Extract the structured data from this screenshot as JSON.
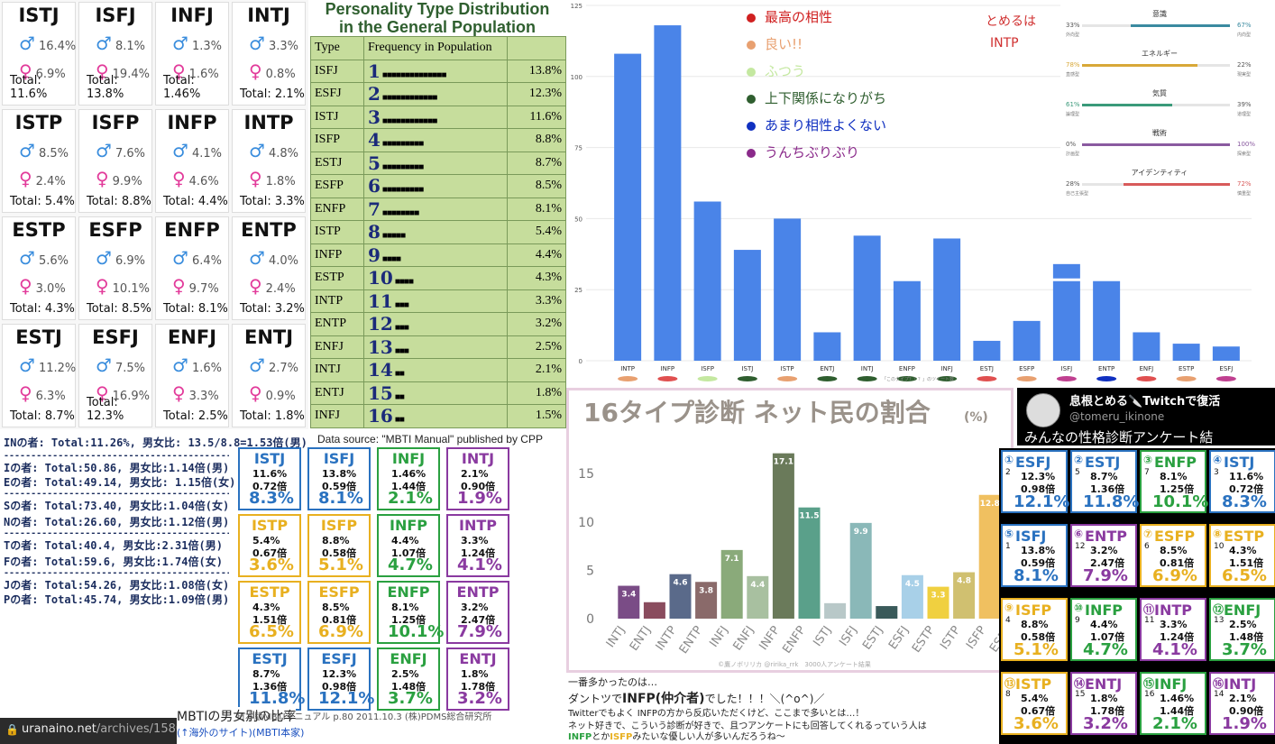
{
  "gender_grid": [
    {
      "type": "ISTJ",
      "male": "16.4%",
      "female": "6.9%",
      "total": "Total: 11.6%"
    },
    {
      "type": "ISFJ",
      "male": "8.1%",
      "female": "19.4%",
      "total": "Total: 13.8%"
    },
    {
      "type": "INFJ",
      "male": "1.3%",
      "female": "1.6%",
      "total": "Total: 1.46%"
    },
    {
      "type": "INTJ",
      "male": "3.3%",
      "female": "0.8%",
      "total": "Total: 2.1%"
    },
    {
      "type": "ISTP",
      "male": "8.5%",
      "female": "2.4%",
      "total": "Total: 5.4%"
    },
    {
      "type": "ISFP",
      "male": "7.6%",
      "female": "9.9%",
      "total": "Total: 8.8%"
    },
    {
      "type": "INFP",
      "male": "4.1%",
      "female": "4.6%",
      "total": "Total: 4.4%"
    },
    {
      "type": "INTP",
      "male": "4.8%",
      "female": "1.8%",
      "total": "Total: 3.3%"
    },
    {
      "type": "ESTP",
      "male": "5.6%",
      "female": "3.0%",
      "total": "Total: 4.3%"
    },
    {
      "type": "ESFP",
      "male": "6.9%",
      "female": "10.1%",
      "total": "Total: 8.5%"
    },
    {
      "type": "ENFP",
      "male": "6.4%",
      "female": "9.7%",
      "total": "Total: 8.1%"
    },
    {
      "type": "ENTP",
      "male": "4.0%",
      "female": "2.4%",
      "total": "Total: 3.2%"
    },
    {
      "type": "ESTJ",
      "male": "11.2%",
      "female": "6.3%",
      "total": "Total: 8.7%"
    },
    {
      "type": "ESFJ",
      "male": "7.5%",
      "female": "16.9%",
      "total": "Total: 12.3%"
    },
    {
      "type": "ENFJ",
      "male": "1.6%",
      "female": "3.3%",
      "total": "Total: 2.5%"
    },
    {
      "type": "ENTJ",
      "male": "2.7%",
      "female": "0.9%",
      "total": "Total: 1.8%"
    }
  ],
  "stats": [
    "INの者: Total:11.26%, 男女比: 13.5/8.8=1.53倍(男)",
    "------------------------------------------",
    "Iの者: Total:50.86, 男女比:1.14倍(男)",
    "Eの者: Total:49.14, 男女比: 1.15倍(女)",
    "------------------------------------------",
    "Sの者: Total:73.40, 男女比:1.04倍(女)",
    "Nの者: Total:26.60, 男女比:1.12倍(男)",
    "------------------------------------------",
    "Tの者: Total:40.4, 男女比:2.31倍(男)",
    "Fの者: Total:59.6, 男女比:1.74倍(女)",
    "------------------------------------------",
    "Jの者: Total:54.26, 男女比:1.08倍(女)",
    "Pの者: Total:45.74, 男女比:1.09倍(男)"
  ],
  "population": {
    "title_line1": "Personality Type Distribution",
    "title_line2": "in the General Population",
    "col_type": "Type",
    "col_freq": "Frequency in Population",
    "rows": [
      {
        "type": "ISFJ",
        "rank": "1",
        "bar": "■■■■■■■■■■■■■■",
        "pct": "13.8%"
      },
      {
        "type": "ESFJ",
        "rank": "2",
        "bar": "■■■■■■■■■■■■",
        "pct": "12.3%"
      },
      {
        "type": "ISTJ",
        "rank": "3",
        "bar": "■■■■■■■■■■■■",
        "pct": "11.6%"
      },
      {
        "type": "ISFP",
        "rank": "4",
        "bar": "■■■■■■■■■",
        "pct": "8.8%"
      },
      {
        "type": "ESTJ",
        "rank": "5",
        "bar": "■■■■■■■■■",
        "pct": "8.7%"
      },
      {
        "type": "ESFP",
        "rank": "6",
        "bar": "■■■■■■■■■",
        "pct": "8.5%"
      },
      {
        "type": "ENFP",
        "rank": "7",
        "bar": "■■■■■■■■",
        "pct": "8.1%"
      },
      {
        "type": "ISTP",
        "rank": "8",
        "bar": "■■■■■",
        "pct": "5.4%"
      },
      {
        "type": "INFP",
        "rank": "9",
        "bar": "■■■■",
        "pct": "4.4%"
      },
      {
        "type": "ESTP",
        "rank": "10",
        "bar": "■■■■",
        "pct": "4.3%"
      },
      {
        "type": "INTP",
        "rank": "11",
        "bar": "■■■",
        "pct": "3.3%"
      },
      {
        "type": "ENTP",
        "rank": "12",
        "bar": "■■■",
        "pct": "3.2%"
      },
      {
        "type": "ENFJ",
        "rank": "13",
        "bar": "■■■",
        "pct": "2.5%"
      },
      {
        "type": "INTJ",
        "rank": "14",
        "bar": "■■",
        "pct": "2.1%"
      },
      {
        "type": "ENTJ",
        "rank": "15",
        "bar": "■■",
        "pct": "1.8%"
      },
      {
        "type": "INFJ",
        "rank": "16",
        "bar": "■■",
        "pct": "1.5%"
      }
    ],
    "source": "Data source: \"MBTI Manual\" published by CPP"
  },
  "chart_data": [
    {
      "type": "bar",
      "categories": [
        "INTP",
        "INFP",
        "ISFP",
        "ISTJ",
        "ISTP",
        "ENTJ",
        "INTJ",
        "ENFP",
        "INFJ",
        "ESTJ",
        "ESFP",
        "ISFJ",
        "ENTP",
        "ENFJ",
        "ESTP",
        "ESFJ"
      ],
      "values": [
        108,
        118,
        56,
        39,
        50,
        10,
        44,
        28,
        43,
        7,
        14,
        28,
        28,
        10,
        6,
        5
      ],
      "extra_segment": {
        "category": "ISFJ",
        "value": 6
      },
      "yticks": [
        0,
        25,
        50,
        75,
        100,
        125
      ],
      "ylim": [
        0,
        125
      ],
      "color": "#4a84e8",
      "marker_colors": [
        "#e8a070",
        "#e05050",
        "#c4e8a0",
        "#2f5e2f",
        "#e8a070",
        "#2f5e2f",
        "#2f5e2f",
        "#2f5e2f",
        "#2f5e2f",
        "#e05050",
        "#e8a070",
        "#c04090",
        "#1030c0",
        "#e05050",
        "#e8a070",
        "#c04090"
      ],
      "legend": [
        {
          "text": "最高の相性",
          "color": "#d02020"
        },
        {
          "text": "良い!!",
          "color": "#e8a070"
        },
        {
          "text": "ふつう",
          "color": "#c4e8a0"
        },
        {
          "text": "上下関係になりがち",
          "color": "#2f5e2f"
        },
        {
          "text": "あまり相性よくない",
          "color": "#1030c0"
        },
        {
          "text": "うんちぶりぶり",
          "color": "#8a2a8a"
        }
      ],
      "note_line1": "とめるは",
      "note_line2": "INTP",
      "footnote": "「このタイプ？？？」のツイート数"
    },
    {
      "type": "bar",
      "title": "16タイプ診断 ネット民の割合",
      "title_unit": "(%)",
      "categories": [
        "INTJ",
        "ENTJ",
        "INTP",
        "ENTP",
        "INFJ",
        "ENFJ",
        "INFP",
        "ENFP",
        "ISTJ",
        "ISFJ",
        "ESTJ",
        "ESFJ",
        "ESTP",
        "ISTP",
        "ISFP",
        "ESFP"
      ],
      "values": [
        3.4,
        1.7,
        4.6,
        3.8,
        7.1,
        4.4,
        17.1,
        11.5,
        1.6,
        9.9,
        1.3,
        4.5,
        3.3,
        4.8,
        12.8,
        8.4
      ],
      "labels": [
        "3.4",
        "1.7",
        "4.6",
        "3.8",
        "7.1",
        "4.4",
        "17.1",
        "11.5",
        "1.6",
        "9.9",
        "1.3",
        "4.5",
        "3.3",
        "4.8",
        "12.8",
        "8.4"
      ],
      "colors": [
        "#7a4c86",
        "#8a4c5e",
        "#5a6a8a",
        "#8a6a6a",
        "#8aaa7a",
        "#a8c0a0",
        "#6a7a5a",
        "#5aa08a",
        "#b8c8c8",
        "#8ab8b8",
        "#3a5a5a",
        "#a8d0e8",
        "#f0d040",
        "#d0c070",
        "#f0c060",
        "#f09050"
      ],
      "yticks": [
        0,
        5,
        10,
        15
      ],
      "ylim": [
        0,
        18
      ],
      "credit": "©鷹ノボリリカ @ririka_rrk　3000人アンケート結果"
    }
  ],
  "panel": {
    "items": [
      {
        "title": "意識",
        "left_pct": "33%",
        "left_label": "外向型",
        "right_pct": "67%",
        "right_label": "内向型",
        "fill": 0.67,
        "side": "right",
        "color": "#3a8aa0"
      },
      {
        "title": "エネルギー",
        "left_pct": "78%",
        "left_label": "直感型",
        "right_pct": "22%",
        "right_label": "現実型",
        "fill": 0.78,
        "side": "left",
        "color": "#d8a838"
      },
      {
        "title": "気質",
        "left_pct": "61%",
        "left_label": "論理型",
        "right_pct": "39%",
        "right_label": "道理型",
        "fill": 0.61,
        "side": "left",
        "color": "#3a9a7a"
      },
      {
        "title": "戦術",
        "left_pct": "0%",
        "left_label": "計画型",
        "right_pct": "100%",
        "right_label": "探索型",
        "fill": 1.0,
        "side": "right",
        "color": "#8a5aa0"
      },
      {
        "title": "アイデンティティ",
        "left_pct": "28%",
        "left_label": "自己主張型",
        "right_pct": "72%",
        "right_label": "慎重型",
        "fill": 0.72,
        "side": "right",
        "color": "#d85a5a"
      }
    ]
  },
  "twitter": {
    "name": "息根とめる🔪Twitchで復活",
    "handle": "@tomeru_ikinone",
    "subtitle": "みんなの性格診断アンケート結"
  },
  "grid_boxes": [
    {
      "type": "ISTJ",
      "v1": "11.6%",
      "v2": "0.72倍",
      "v3": "8.3%",
      "color": "#2a72c0"
    },
    {
      "type": "ISFJ",
      "v1": "13.8%",
      "v2": "0.59倍",
      "v3": "8.1%",
      "color": "#2a72c0"
    },
    {
      "type": "INFJ",
      "v1": "1.46%",
      "v2": "1.44倍",
      "v3": "2.1%",
      "color": "#2aa040"
    },
    {
      "type": "INTJ",
      "v1": "2.1%",
      "v2": "0.90倍",
      "v3": "1.9%",
      "color": "#8a3aa0"
    },
    {
      "type": "ISTP",
      "v1": "5.4%",
      "v2": "0.67倍",
      "v3": "3.6%",
      "color": "#e8b020"
    },
    {
      "type": "ISFP",
      "v1": "8.8%",
      "v2": "0.58倍",
      "v3": "5.1%",
      "color": "#e8b020"
    },
    {
      "type": "INFP",
      "v1": "4.4%",
      "v2": "1.07倍",
      "v3": "4.7%",
      "color": "#2aa040"
    },
    {
      "type": "INTP",
      "v1": "3.3%",
      "v2": "1.24倍",
      "v3": "4.1%",
      "color": "#8a3aa0"
    },
    {
      "type": "ESTP",
      "v1": "4.3%",
      "v2": "1.51倍",
      "v3": "6.5%",
      "color": "#e8b020"
    },
    {
      "type": "ESFP",
      "v1": "8.5%",
      "v2": "0.81倍",
      "v3": "6.9%",
      "color": "#e8b020"
    },
    {
      "type": "ENFP",
      "v1": "8.1%",
      "v2": "1.25倍",
      "v3": "10.1%",
      "color": "#2aa040"
    },
    {
      "type": "ENTP",
      "v1": "3.2%",
      "v2": "2.47倍",
      "v3": "7.9%",
      "color": "#8a3aa0"
    },
    {
      "type": "ESTJ",
      "v1": "8.7%",
      "v2": "1.36倍",
      "v3": "11.8%",
      "color": "#2a72c0"
    },
    {
      "type": "ESFJ",
      "v1": "12.3%",
      "v2": "0.98倍",
      "v3": "12.1%",
      "color": "#2a72c0"
    },
    {
      "type": "ENFJ",
      "v1": "2.5%",
      "v2": "1.48倍",
      "v3": "3.7%",
      "color": "#2aa040"
    },
    {
      "type": "ENTJ",
      "v1": "1.8%",
      "v2": "1.78倍",
      "v3": "3.2%",
      "color": "#8a3aa0"
    }
  ],
  "ranked_boxes": [
    {
      "rank": "①",
      "old": "2",
      "type": "ESFJ",
      "v1": "12.3%",
      "v2": "0.98倍",
      "v3": "12.1%",
      "color": "#2a72c0"
    },
    {
      "rank": "②",
      "old": "5",
      "type": "ESTJ",
      "v1": "8.7%",
      "v2": "1.36倍",
      "v3": "11.8%",
      "color": "#2a72c0"
    },
    {
      "rank": "③",
      "old": "7",
      "type": "ENFP",
      "v1": "8.1%",
      "v2": "1.25倍",
      "v3": "10.1%",
      "color": "#2aa040"
    },
    {
      "rank": "④",
      "old": "3",
      "type": "ISTJ",
      "v1": "11.6%",
      "v2": "0.72倍",
      "v3": "8.3%",
      "color": "#2a72c0"
    },
    {
      "rank": "⑤",
      "old": "1",
      "type": "ISFJ",
      "v1": "13.8%",
      "v2": "0.59倍",
      "v3": "8.1%",
      "color": "#2a72c0"
    },
    {
      "rank": "⑥",
      "old": "12",
      "type": "ENTP",
      "v1": "3.2%",
      "v2": "2.47倍",
      "v3": "7.9%",
      "color": "#8a3aa0"
    },
    {
      "rank": "⑦",
      "old": "6",
      "type": "ESFP",
      "v1": "8.5%",
      "v2": "0.81倍",
      "v3": "6.9%",
      "color": "#e8b020"
    },
    {
      "rank": "⑧",
      "old": "10",
      "type": "ESTP",
      "v1": "4.3%",
      "v2": "1.51倍",
      "v3": "6.5%",
      "color": "#e8b020"
    },
    {
      "rank": "⑨",
      "old": "4",
      "type": "ISFP",
      "v1": "8.8%",
      "v2": "0.58倍",
      "v3": "5.1%",
      "color": "#e8b020"
    },
    {
      "rank": "⑩",
      "old": "9",
      "type": "INFP",
      "v1": "4.4%",
      "v2": "1.07倍",
      "v3": "4.7%",
      "color": "#2aa040"
    },
    {
      "rank": "⑪",
      "old": "11",
      "type": "INTP",
      "v1": "3.3%",
      "v2": "1.24倍",
      "v3": "4.1%",
      "color": "#8a3aa0"
    },
    {
      "rank": "⑫",
      "old": "13",
      "type": "ENFJ",
      "v1": "2.5%",
      "v2": "1.48倍",
      "v3": "3.7%",
      "color": "#2aa040"
    },
    {
      "rank": "⑬",
      "old": "8",
      "type": "ISTP",
      "v1": "5.4%",
      "v2": "0.67倍",
      "v3": "3.6%",
      "color": "#e8b020"
    },
    {
      "rank": "⑭",
      "old": "15",
      "type": "ENTJ",
      "v1": "1.8%",
      "v2": "1.78倍",
      "v3": "3.2%",
      "color": "#8a3aa0"
    },
    {
      "rank": "⑮",
      "old": "16",
      "type": "INFJ",
      "v1": "1.46%",
      "v2": "1.44倍",
      "v3": "2.1%",
      "color": "#2aa040"
    },
    {
      "rank": "⑯",
      "old": "14",
      "type": "INTJ",
      "v1": "2.1%",
      "v2": "0.90倍",
      "v3": "1.9%",
      "color": "#8a3aa0"
    }
  ],
  "bottom": {
    "url_prefix": "uranaino.net",
    "url_path": "/archives/1580",
    "caption_title": "MBTIの男女別の比率",
    "caption_source": "日本版MBTIマニュアル p.80 2011.10.3 (株)PDMS総合研究所",
    "caption_link": "(↑海外のサイト)(MBTI本家)"
  },
  "comment": {
    "line1": "一番多かったのは…",
    "line2_pre": "ダントツで",
    "line2_bold": "INFP(仲介者)",
    "line2_post": "でした！！！＼(^o^)／",
    "line3": "Twitterでもよく INFPの方から反応いただくけど、ここまで多いとは…！",
    "line4": "ネット好きで、こういう診断が好きで、且つアンケートにも回答してくれるっていう人は",
    "line5_a": "INFP",
    "line5_b": "とか",
    "line5_c": "ISFP",
    "line5_d": "みたいな優しい人が多いんだろうね〜"
  }
}
